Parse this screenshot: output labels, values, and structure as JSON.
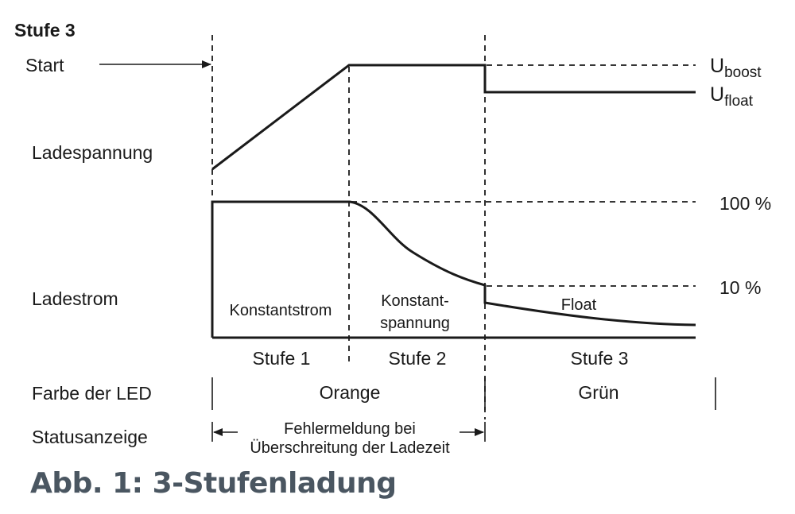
{
  "diagram": {
    "heading": "Stufe 3",
    "start_label": "Start",
    "row_labels": {
      "voltage": "Ladespannung",
      "current": "Ladestrom",
      "led_color": "Farbe der LED",
      "status": "Statusanzeige"
    },
    "voltage_levels": {
      "boost_main": "U",
      "boost_sub": "boost",
      "float_main": "U",
      "float_sub": "float"
    },
    "current_levels": {
      "high": "100 %",
      "low": "10 %"
    },
    "phases": {
      "constant_current": "Konstantstrom",
      "constant_voltage_line1": "Konstant-",
      "constant_voltage_line2": "spannung",
      "float": "Float"
    },
    "stages": [
      "Stufe 1",
      "Stufe 2",
      "Stufe 3"
    ],
    "led_colors": {
      "stages_1_2": "Orange",
      "stage_3": "Grün"
    },
    "status_text": {
      "line1": "Fehlermeldung bei",
      "line2": "Überschreitung der Ladezeit"
    }
  },
  "caption": "Abb. 1: 3-Stufenladung",
  "colors": {
    "line": "#1a1a1a",
    "caption": "#4a5661",
    "background": "#ffffff"
  }
}
